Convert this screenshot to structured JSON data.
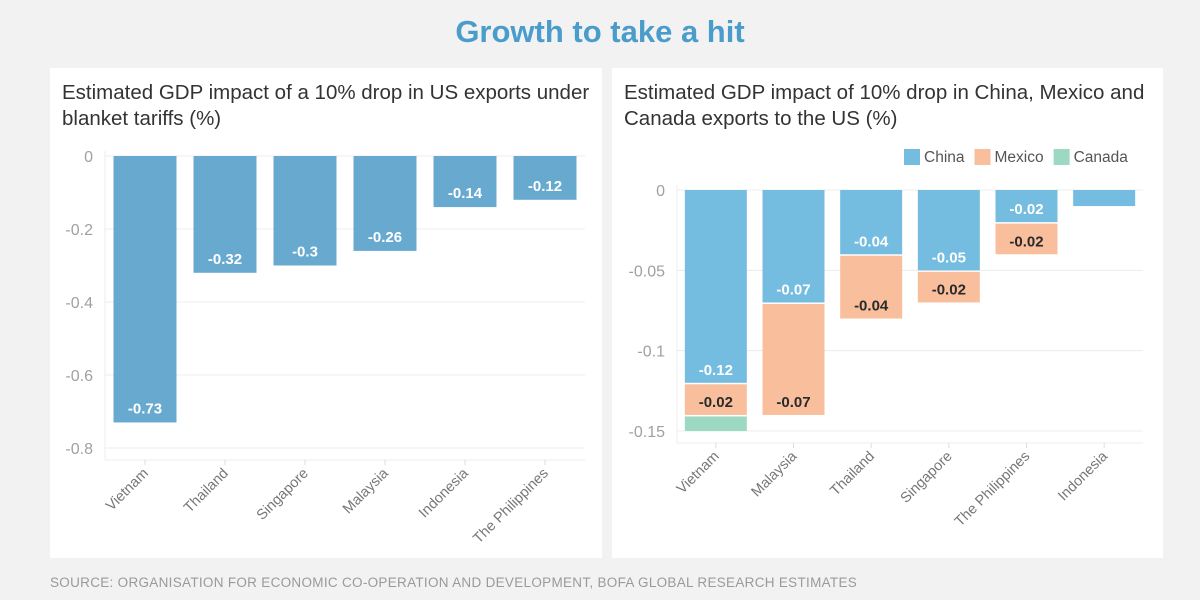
{
  "title": "Growth to take a hit",
  "source": "SOURCE: ORGANISATION FOR ECONOMIC CO-OPERATION AND DEVELOPMENT, BOFA GLOBAL RESEARCH ESTIMATES",
  "chart_data": [
    {
      "type": "bar",
      "title": "Estimated GDP impact of a 10% drop in US exports under blanket tariffs (%)",
      "categories": [
        "Vietnam",
        "Thailand",
        "Singapore",
        "Malaysia",
        "Indonesia",
        "The Philippines"
      ],
      "values": [
        -0.73,
        -0.32,
        -0.3,
        -0.26,
        -0.14,
        -0.12
      ],
      "labels": [
        "-0.73",
        "-0.32",
        "-0.3",
        "-0.26",
        "-0.14",
        "-0.12"
      ],
      "ylim": [
        -0.8,
        0
      ],
      "yticks": [
        "0",
        "-0.2",
        "-0.4",
        "-0.6",
        "-0.8"
      ],
      "grid": true,
      "color": "#68aacf"
    },
    {
      "type": "bar",
      "stacked": true,
      "title": "Estimated GDP impact of 10% drop in China, Mexico and Canada exports to the US (%)",
      "categories": [
        "Vietnam",
        "Malaysia",
        "Thailand",
        "Singapore",
        "The Philippines",
        "Indonesia"
      ],
      "legend_position": "top-right",
      "series": [
        {
          "name": "China",
          "color": "#74bde0",
          "values": [
            -0.12,
            -0.07,
            -0.04,
            -0.05,
            -0.02,
            -0.01
          ],
          "labels": [
            "-0.12",
            "-0.07",
            "-0.04",
            "-0.05",
            "-0.02",
            ""
          ]
        },
        {
          "name": "Mexico",
          "color": "#f9bf9c",
          "values": [
            -0.02,
            -0.07,
            -0.04,
            -0.02,
            -0.02,
            0
          ],
          "labels": [
            "-0.02",
            "-0.07",
            "-0.04",
            "-0.02",
            "-0.02",
            ""
          ]
        },
        {
          "name": "Canada",
          "color": "#9dd9c2",
          "values": [
            -0.01,
            0,
            0,
            0,
            0,
            0
          ],
          "labels": [
            "",
            "",
            "",
            "",
            "",
            ""
          ]
        }
      ],
      "ylim": [
        -0.15,
        0
      ],
      "yticks": [
        "0",
        "-0.05",
        "-0.1",
        "-0.15"
      ],
      "grid": true
    }
  ]
}
